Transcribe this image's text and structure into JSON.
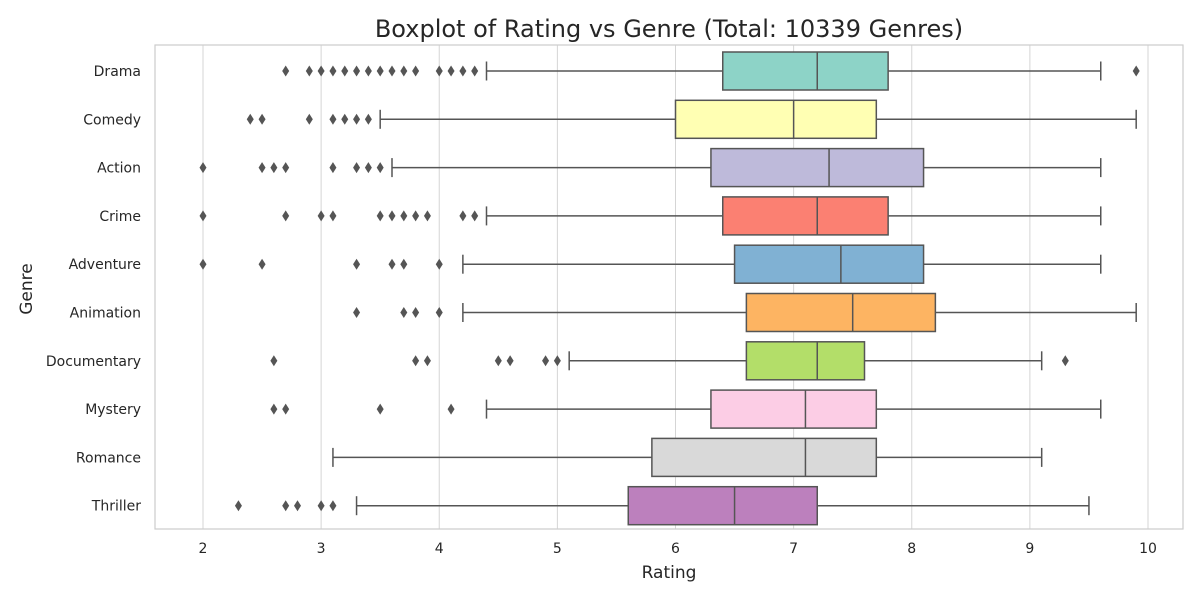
{
  "chart_data": {
    "type": "boxplot",
    "orientation": "horizontal",
    "title": "Boxplot of Rating vs Genre (Total: 10339 Genres)",
    "xlabel": "Rating",
    "ylabel": "Genre",
    "xlim": [
      1.6,
      10.25
    ],
    "xticks": [
      2,
      3,
      4,
      5,
      6,
      7,
      8,
      9,
      10
    ],
    "grid": "vertical",
    "categories": [
      "Drama",
      "Comedy",
      "Action",
      "Crime",
      "Adventure",
      "Animation",
      "Documentary",
      "Mystery",
      "Romance",
      "Thriller"
    ],
    "boxes": [
      {
        "genre": "Drama",
        "whisker_low": 4.4,
        "q1": 6.4,
        "median": 7.2,
        "q3": 7.8,
        "whisker_high": 9.6,
        "outliers": [
          2.7,
          2.9,
          3.0,
          3.1,
          3.2,
          3.3,
          3.4,
          3.5,
          3.6,
          3.7,
          3.8,
          4.0,
          4.1,
          4.2,
          4.3,
          9.9
        ],
        "color": "#8dd3c7"
      },
      {
        "genre": "Comedy",
        "whisker_low": 3.5,
        "q1": 6.0,
        "median": 7.0,
        "q3": 7.7,
        "whisker_high": 9.9,
        "outliers": [
          2.4,
          2.5,
          2.9,
          3.1,
          3.2,
          3.3,
          3.4
        ],
        "color": "#ffffb3"
      },
      {
        "genre": "Action",
        "whisker_low": 3.6,
        "q1": 6.3,
        "median": 7.3,
        "q3": 8.1,
        "whisker_high": 9.6,
        "outliers": [
          2.0,
          2.5,
          2.6,
          2.7,
          3.1,
          3.3,
          3.4,
          3.5
        ],
        "color": "#bebada"
      },
      {
        "genre": "Crime",
        "whisker_low": 4.4,
        "q1": 6.4,
        "median": 7.2,
        "q3": 7.8,
        "whisker_high": 9.6,
        "outliers": [
          2.0,
          2.7,
          3.0,
          3.1,
          3.5,
          3.6,
          3.7,
          3.8,
          3.9,
          4.2,
          4.3
        ],
        "color": "#fb8072"
      },
      {
        "genre": "Adventure",
        "whisker_low": 4.2,
        "q1": 6.5,
        "median": 7.4,
        "q3": 8.1,
        "whisker_high": 9.6,
        "outliers": [
          2.0,
          2.5,
          3.3,
          3.6,
          3.7,
          4.0
        ],
        "color": "#80b1d3"
      },
      {
        "genre": "Animation",
        "whisker_low": 4.2,
        "q1": 6.6,
        "median": 7.5,
        "q3": 8.2,
        "whisker_high": 9.9,
        "outliers": [
          3.3,
          3.7,
          3.8,
          4.0
        ],
        "color": "#fdb462"
      },
      {
        "genre": "Documentary",
        "whisker_low": 5.1,
        "q1": 6.6,
        "median": 7.2,
        "q3": 7.6,
        "whisker_high": 9.1,
        "outliers": [
          2.6,
          3.8,
          3.9,
          4.5,
          4.6,
          4.9,
          5.0,
          9.3
        ],
        "color": "#b3de69"
      },
      {
        "genre": "Mystery",
        "whisker_low": 4.4,
        "q1": 6.3,
        "median": 7.1,
        "q3": 7.7,
        "whisker_high": 9.6,
        "outliers": [
          2.6,
          2.7,
          3.5,
          4.1
        ],
        "color": "#fccde5"
      },
      {
        "genre": "Romance",
        "whisker_low": 3.1,
        "q1": 5.8,
        "median": 7.1,
        "q3": 7.7,
        "whisker_high": 9.1,
        "outliers": [],
        "color": "#d9d9d9"
      },
      {
        "genre": "Thriller",
        "whisker_low": 3.3,
        "q1": 5.6,
        "median": 6.5,
        "q3": 7.2,
        "whisker_high": 9.5,
        "outliers": [
          2.3,
          2.7,
          2.8,
          3.0,
          3.1
        ],
        "color": "#bc80bd"
      }
    ]
  }
}
